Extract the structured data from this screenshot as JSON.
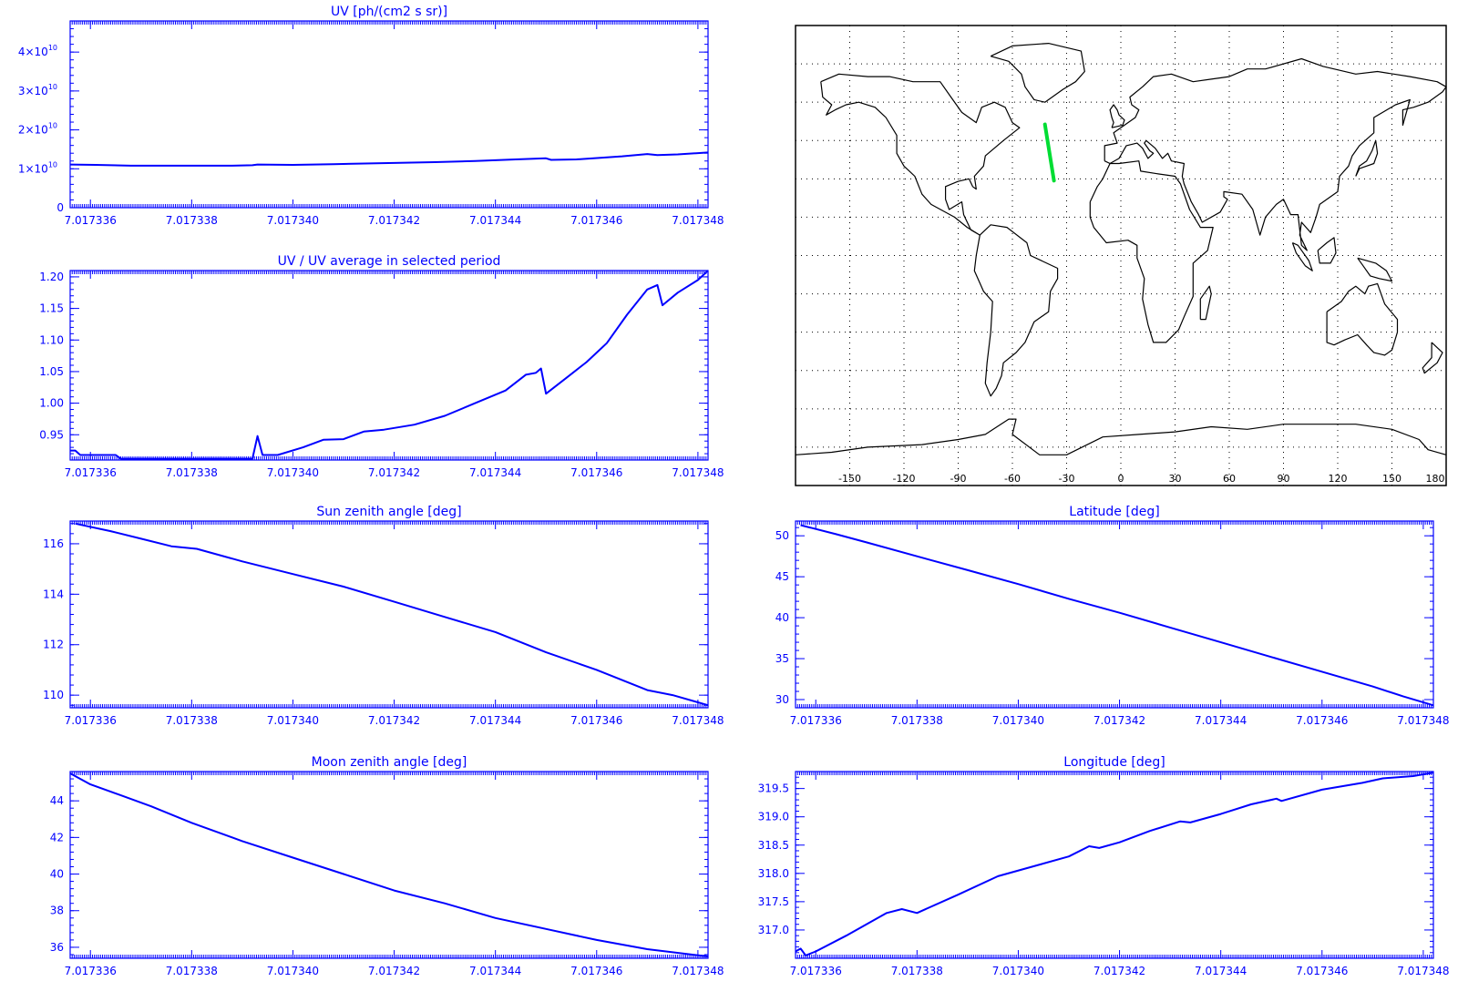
{
  "colors": {
    "axis": "#0000ff",
    "line": "#0000ff",
    "map_line": "#000000",
    "track": "#00dd33"
  },
  "chart_data": [
    {
      "id": "uv",
      "type": "line",
      "title": "UV [ph/(cm2 s sr)]",
      "xlabel": "",
      "ylabel": "",
      "xlim": [
        7.0173356,
        7.0173482
      ],
      "ylim": [
        0,
        48000000000.0
      ],
      "xticks": [
        "7.017336",
        "7.017338",
        "7.017340",
        "7.017342",
        "7.017344",
        "7.017346",
        "7.017348"
      ],
      "yticks": [
        {
          "value": 0,
          "base": "0",
          "exp": ""
        },
        {
          "value": 10000000000.0,
          "base": "1×10",
          "exp": "10"
        },
        {
          "value": 20000000000.0,
          "base": "2×10",
          "exp": "10"
        },
        {
          "value": 30000000000.0,
          "base": "3×10",
          "exp": "10"
        },
        {
          "value": 40000000000.0,
          "base": "4×10",
          "exp": "10"
        }
      ],
      "series": [
        {
          "x": [
            7.0173356,
            7.0173361,
            7.0173368,
            7.0173376,
            7.0173388,
            7.0173392,
            7.0173393,
            7.01734,
            7.0173408,
            7.017342,
            7.0173428,
            7.0173436,
            7.0173444,
            7.017345,
            7.0173451,
            7.0173456,
            7.0173465,
            7.017347,
            7.0173472,
            7.0173476,
            7.0173482
          ],
          "y": [
            11100000000.0,
            11000000000.0,
            10800000000.0,
            10800000000.0,
            10800000000.0,
            10900000000.0,
            11100000000.0,
            11000000000.0,
            11200000000.0,
            11500000000.0,
            11700000000.0,
            12000000000.0,
            12400000000.0,
            12700000000.0,
            12300000000.0,
            12400000000.0,
            13200000000.0,
            13800000000.0,
            13500000000.0,
            13700000000.0,
            14200000000.0
          ]
        }
      ]
    },
    {
      "id": "uvratio",
      "type": "line",
      "title": "UV / UV average in selected period",
      "xlabel": "",
      "ylabel": "",
      "xlim": [
        7.0173356,
        7.0173482
      ],
      "ylim": [
        0.91,
        1.21
      ],
      "xticks": [
        "7.017336",
        "7.017338",
        "7.017340",
        "7.017342",
        "7.017344",
        "7.017346",
        "7.017348"
      ],
      "yticks": [
        {
          "value": 0.95,
          "base": "0.95"
        },
        {
          "value": 1.0,
          "base": "1.00"
        },
        {
          "value": 1.05,
          "base": "1.05"
        },
        {
          "value": 1.1,
          "base": "1.10"
        },
        {
          "value": 1.15,
          "base": "1.15"
        },
        {
          "value": 1.2,
          "base": "1.20"
        }
      ],
      "series": [
        {
          "x": [
            7.0173356,
            7.0173357,
            7.0173358,
            7.0173365,
            7.0173366,
            7.0173392,
            7.0173393,
            7.0173394,
            7.0173397,
            7.0173402,
            7.0173406,
            7.017341,
            7.0173414,
            7.0173418,
            7.0173424,
            7.017343,
            7.0173436,
            7.0173442,
            7.0173446,
            7.0173448,
            7.0173449,
            7.017345,
            7.0173454,
            7.0173458,
            7.0173462,
            7.0173466,
            7.017347,
            7.0173472,
            7.0173473,
            7.0173476,
            7.017348,
            7.0173482
          ],
          "y": [
            0.925,
            0.925,
            0.918,
            0.918,
            0.912,
            0.912,
            0.948,
            0.918,
            0.918,
            0.93,
            0.942,
            0.943,
            0.955,
            0.958,
            0.966,
            0.98,
            1.0,
            1.02,
            1.045,
            1.048,
            1.055,
            1.015,
            1.04,
            1.065,
            1.095,
            1.14,
            1.18,
            1.187,
            1.155,
            1.175,
            1.195,
            1.21
          ]
        }
      ]
    },
    {
      "id": "sunzen",
      "type": "line",
      "title": "Sun zenith angle [deg]",
      "xlabel": "",
      "ylabel": "",
      "xlim": [
        7.0173356,
        7.0173482
      ],
      "ylim": [
        109.5,
        116.9
      ],
      "xticks": [
        "7.017336",
        "7.017338",
        "7.017340",
        "7.017342",
        "7.017344",
        "7.017346",
        "7.017348"
      ],
      "yticks": [
        {
          "value": 110,
          "base": "110"
        },
        {
          "value": 112,
          "base": "112"
        },
        {
          "value": 114,
          "base": "114"
        },
        {
          "value": 116,
          "base": "116"
        }
      ],
      "series": [
        {
          "x": [
            7.0173357,
            7.0173364,
            7.017337,
            7.0173376,
            7.0173381,
            7.017339,
            7.01734,
            7.017341,
            7.017342,
            7.017343,
            7.017344,
            7.017345,
            7.017346,
            7.017347,
            7.0173475,
            7.0173482
          ],
          "y": [
            116.8,
            116.5,
            116.2,
            115.9,
            115.8,
            115.3,
            114.8,
            114.3,
            113.7,
            113.1,
            112.5,
            111.7,
            111.0,
            110.2,
            110.0,
            109.6
          ]
        }
      ]
    },
    {
      "id": "latitude",
      "type": "line",
      "title": "Latitude [deg]",
      "xlabel": "",
      "ylabel": "",
      "xlim": [
        7.0173356,
        7.0173482
      ],
      "ylim": [
        29,
        51.8
      ],
      "xticks": [
        "7.017336",
        "7.017338",
        "7.017340",
        "7.017342",
        "7.017344",
        "7.017346",
        "7.017348"
      ],
      "yticks": [
        {
          "value": 30,
          "base": "30"
        },
        {
          "value": 35,
          "base": "35"
        },
        {
          "value": 40,
          "base": "40"
        },
        {
          "value": 45,
          "base": "45"
        },
        {
          "value": 50,
          "base": "50"
        }
      ],
      "series": [
        {
          "x": [
            7.0173357,
            7.0173364,
            7.017337,
            7.017338,
            7.017339,
            7.01734,
            7.017341,
            7.017342,
            7.017343,
            7.017344,
            7.017345,
            7.017346,
            7.017347,
            7.0173476,
            7.0173482
          ],
          "y": [
            51.3,
            50.2,
            49.2,
            47.5,
            45.8,
            44.1,
            42.3,
            40.6,
            38.8,
            37.0,
            35.2,
            33.4,
            31.6,
            30.4,
            29.3
          ]
        }
      ]
    },
    {
      "id": "moonzen",
      "type": "line",
      "title": "Moon zenith angle [deg]",
      "xlabel": "",
      "ylabel": "",
      "xlim": [
        7.0173356,
        7.0173482
      ],
      "ylim": [
        35.4,
        45.6
      ],
      "xticks": [
        "7.017336",
        "7.017338",
        "7.017340",
        "7.017342",
        "7.017344",
        "7.017346",
        "7.017348"
      ],
      "yticks": [
        {
          "value": 36,
          "base": "36"
        },
        {
          "value": 38,
          "base": "38"
        },
        {
          "value": 40,
          "base": "40"
        },
        {
          "value": 42,
          "base": "42"
        },
        {
          "value": 44,
          "base": "44"
        }
      ],
      "series": [
        {
          "x": [
            7.0173356,
            7.017336,
            7.0173366,
            7.0173372,
            7.017338,
            7.017339,
            7.01734,
            7.017341,
            7.017342,
            7.017343,
            7.017344,
            7.017345,
            7.017346,
            7.017347,
            7.0173482
          ],
          "y": [
            45.5,
            44.9,
            44.3,
            43.7,
            42.8,
            41.8,
            40.9,
            40.0,
            39.1,
            38.4,
            37.6,
            37.0,
            36.4,
            35.9,
            35.5
          ]
        }
      ]
    },
    {
      "id": "longitude",
      "type": "line",
      "title": "Longitude [deg]",
      "xlabel": "",
      "ylabel": "",
      "xlim": [
        7.0173356,
        7.0173482
      ],
      "ylim": [
        316.5,
        319.8
      ],
      "xticks": [
        "7.017336",
        "7.017338",
        "7.017340",
        "7.017342",
        "7.017344",
        "7.017346",
        "7.017348"
      ],
      "yticks": [
        {
          "value": 317.0,
          "base": "317.0"
        },
        {
          "value": 317.5,
          "base": "317.5"
        },
        {
          "value": 318.0,
          "base": "318.0"
        },
        {
          "value": 318.5,
          "base": "318.5"
        },
        {
          "value": 319.0,
          "base": "319.0"
        },
        {
          "value": 319.5,
          "base": "319.5"
        }
      ],
      "series": [
        {
          "x": [
            7.0173356,
            7.0173357,
            7.0173358,
            7.017336,
            7.0173366,
            7.0173374,
            7.0173377,
            7.017338,
            7.0173388,
            7.0173396,
            7.0173404,
            7.017341,
            7.0173414,
            7.0173416,
            7.017342,
            7.0173426,
            7.0173432,
            7.0173434,
            7.017344,
            7.0173446,
            7.0173451,
            7.0173452,
            7.017346,
            7.0173468,
            7.0173472,
            7.0173478,
            7.0173482
          ],
          "y": [
            316.62,
            316.67,
            316.55,
            316.62,
            316.9,
            317.3,
            317.37,
            317.3,
            317.62,
            317.95,
            318.15,
            318.3,
            318.48,
            318.45,
            318.55,
            318.75,
            318.92,
            318.9,
            319.05,
            319.22,
            319.32,
            319.28,
            319.48,
            319.6,
            319.68,
            319.72,
            319.78
          ]
        }
      ]
    }
  ],
  "map": {
    "lon_ticks": [
      "-150",
      "-120",
      "-90",
      "-60",
      "-30",
      "0",
      "30",
      "60",
      "90",
      "120",
      "150",
      "180"
    ],
    "lon_values": [
      -150,
      -120,
      -90,
      -60,
      -30,
      0,
      30,
      60,
      90,
      120,
      150,
      180
    ],
    "grid_lat": [
      -75,
      -60,
      -45,
      -30,
      -15,
      0,
      15,
      30,
      45,
      60,
      75
    ],
    "track": {
      "lon": [
        -42,
        -37
      ],
      "lat": [
        51.3,
        29.3
      ]
    }
  }
}
